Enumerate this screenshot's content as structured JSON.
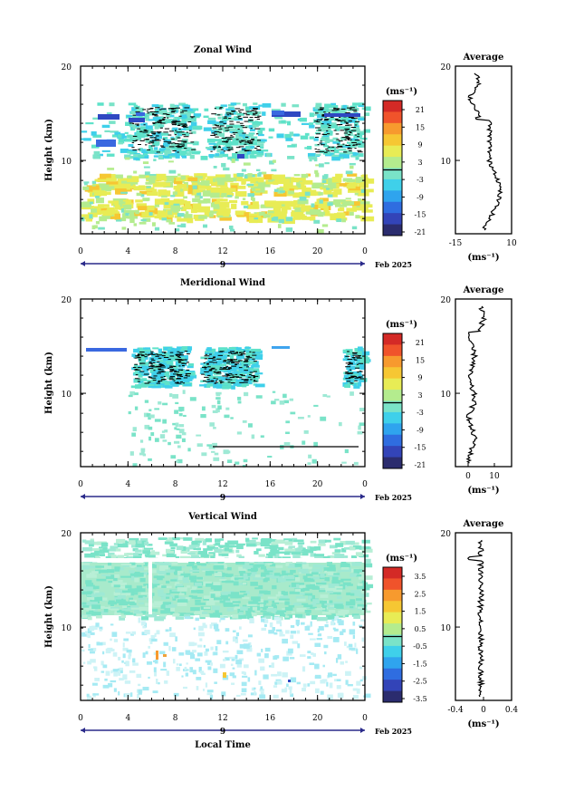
{
  "chart_data": [
    {
      "type": "heatmap",
      "title": "Zonal Wind",
      "ylabel": "Height (km)",
      "y_ticks": [
        "20",
        "10"
      ],
      "x_ticks": [
        "0",
        "4",
        "8",
        "12",
        "16",
        "20",
        "0"
      ],
      "date_marker": "9",
      "date_label": "Feb 2025",
      "colorbar": {
        "unit": "(ms⁻¹)",
        "ticks": [
          "21",
          "15",
          "9",
          "3",
          "-3",
          "-9",
          "-15",
          "-21"
        ]
      },
      "profile": {
        "title": "Average",
        "y_ticks": [
          "20",
          "10"
        ],
        "x_ticks": [
          "-15",
          "10"
        ],
        "xlabel": "(ms⁻¹)"
      }
    },
    {
      "type": "heatmap",
      "title": "Meridional Wind",
      "ylabel": "Height (km)",
      "y_ticks": [
        "20",
        "10"
      ],
      "x_ticks": [
        "0",
        "4",
        "8",
        "12",
        "16",
        "20",
        "0"
      ],
      "date_marker": "9",
      "date_label": "Feb 2025",
      "colorbar": {
        "unit": "(ms⁻¹)",
        "ticks": [
          "21",
          "15",
          "9",
          "3",
          "-3",
          "-9",
          "-15",
          "-21"
        ]
      },
      "profile": {
        "title": "Average",
        "y_ticks": [
          "20",
          "10"
        ],
        "x_ticks": [
          "0",
          "10"
        ],
        "xlabel": "(ms⁻¹)"
      }
    },
    {
      "type": "heatmap",
      "title": "Vertical Wind",
      "ylabel": "Height (km)",
      "xlabel": "Local Time",
      "y_ticks": [
        "20",
        "10"
      ],
      "x_ticks": [
        "0",
        "4",
        "8",
        "12",
        "16",
        "20",
        "0"
      ],
      "date_marker": "9",
      "date_label": "Feb 2025",
      "colorbar": {
        "unit": "(ms⁻¹)",
        "ticks": [
          "3.5",
          "2.5",
          "1.5",
          "0.5",
          "-0.5",
          "-1.5",
          "-2.5",
          "-3.5"
        ]
      },
      "profile": {
        "title": "Average",
        "y_ticks": [
          "20",
          "10"
        ],
        "x_ticks": [
          "-0.4",
          "0",
          "0.4"
        ],
        "xlabel": "(ms⁻¹)"
      }
    }
  ],
  "colors": {
    "ramp": [
      "#2b2c6e",
      "#3344b8",
      "#2f6de0",
      "#2fa4ee",
      "#3fd0ea",
      "#7ae3c8",
      "#b4ec8e",
      "#e8ec55",
      "#f6c733",
      "#f79a2e",
      "#f0532b",
      "#d42a26"
    ]
  }
}
